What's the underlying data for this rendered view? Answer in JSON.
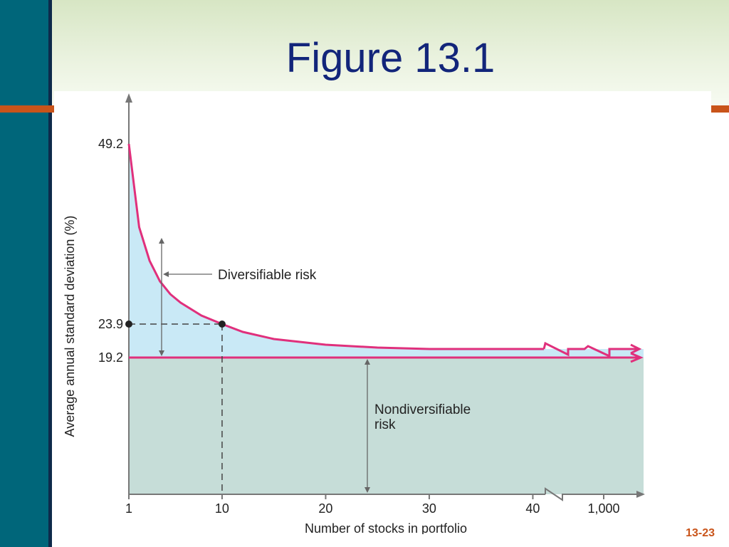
{
  "slide": {
    "title": "Figure 13.1",
    "page_number": "13-23"
  },
  "colors": {
    "sidebar": "#00667a",
    "accent": "#c9541a",
    "title": "#12257a",
    "curve": "#e0307c",
    "diversifiable_fill": "#c9e9f6",
    "nondiversifiable_fill": "#c6ddd8"
  },
  "chart_data": {
    "type": "line",
    "xlabel": "Number of stocks in portfolio",
    "ylabel": "Average annual standard deviation (%)",
    "x_tick_labels": [
      "1",
      "10",
      "20",
      "30",
      "40",
      "1,000"
    ],
    "y_tick_labels": [
      "49.2",
      "23.9",
      "19.2"
    ],
    "ylim": [
      0,
      49.2
    ],
    "x_axis_break": "between 40 and 1,000",
    "series": [
      {
        "x": [
          1,
          2,
          3,
          4,
          5,
          6,
          8,
          10,
          12,
          15,
          20,
          25,
          30,
          35,
          40,
          44
        ],
        "values": [
          49.2,
          37.5,
          32.8,
          29.9,
          28.1,
          26.9,
          25.1,
          23.9,
          22.8,
          21.8,
          21.0,
          20.6,
          20.4,
          20.4,
          20.4,
          20.4
        ]
      }
    ],
    "marked_point": {
      "x": 10,
      "y": 23.9
    },
    "asymptote": 19.2,
    "annotations": {
      "diversifiable": "Diversifiable risk",
      "nondiversifiable_line1": "Nondiversifiable",
      "nondiversifiable_line2": "risk"
    }
  }
}
